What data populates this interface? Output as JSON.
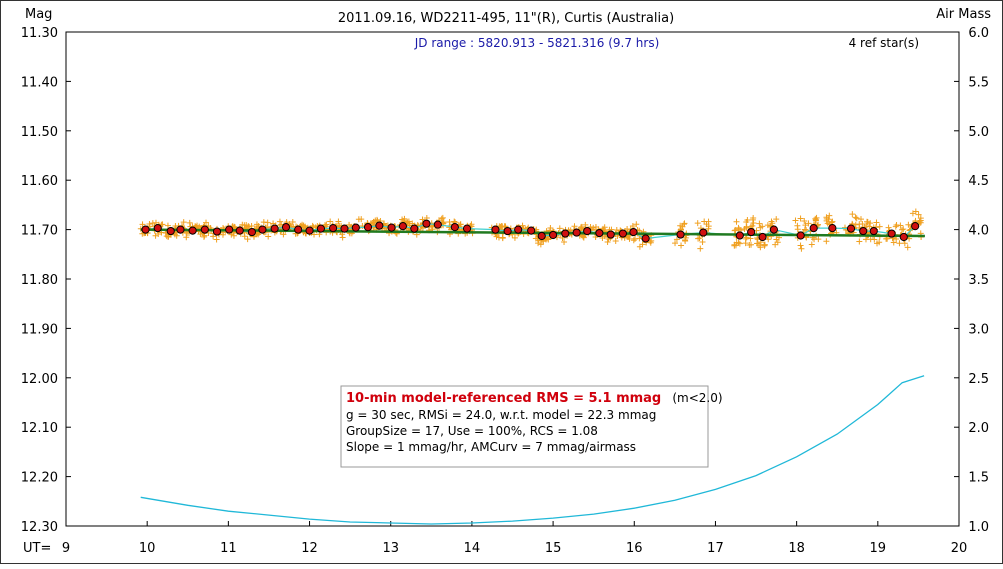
{
  "chart_data": {
    "type": "scatter",
    "title": "2011.09.16, WD2211-495, 11\"(R), Curtis (Australia)",
    "ylabel_left": "Mag",
    "ylabel_right": "Air Mass",
    "xlabel": "UT=",
    "jd_range": "JD range : 5820.913 - 5821.316 (9.7 hrs)",
    "ref_stars": "4 ref star(s)",
    "xlim": [
      9,
      20
    ],
    "ylim_mag": [
      11.3,
      12.3
    ],
    "ylim_airmass": [
      1.0,
      6.0
    ],
    "x_ticks": [
      "9",
      "10",
      "11",
      "12",
      "13",
      "14",
      "15",
      "16",
      "17",
      "18",
      "19",
      "20"
    ],
    "y_ticks_left": [
      "11.30",
      "11.40",
      "11.50",
      "11.60",
      "11.70",
      "11.80",
      "11.90",
      "12.00",
      "12.10",
      "12.20",
      "12.30"
    ],
    "y_ticks_right": [
      "6.0",
      "5.5",
      "5.0",
      "4.5",
      "4.0",
      "3.5",
      "3.0",
      "2.5",
      "2.0",
      "1.5",
      "1.0"
    ],
    "colors": {
      "raw_points": "#f0a020",
      "binned_points": "#d01010",
      "model_line": "#207a20",
      "smooth_line": "#40d0d0",
      "airmass_curve": "#20b8d8"
    },
    "series": [
      {
        "kind": "binned",
        "x": [
          9.98,
          10.13,
          10.29,
          10.41,
          10.56,
          10.71,
          10.86,
          11.01,
          11.14,
          11.29,
          11.42,
          11.57,
          11.71,
          11.86,
          12.0,
          12.14,
          12.29,
          12.43,
          12.57,
          12.72,
          12.86,
          13.01,
          13.15,
          13.29,
          13.44,
          13.58,
          13.79,
          13.94,
          14.29,
          14.44,
          14.57,
          14.73,
          14.86,
          15.0,
          15.15,
          15.29,
          15.42,
          15.57,
          15.71,
          15.86,
          15.99,
          16.14,
          16.57,
          16.85,
          17.3,
          17.44,
          17.58,
          17.72,
          18.05,
          18.21,
          18.44,
          18.67,
          18.82,
          18.95,
          19.17,
          19.32,
          19.46
        ],
        "y": [
          11.7,
          11.697,
          11.703,
          11.7,
          11.702,
          11.7,
          11.704,
          11.7,
          11.702,
          11.705,
          11.7,
          11.698,
          11.695,
          11.7,
          11.702,
          11.698,
          11.697,
          11.698,
          11.696,
          11.695,
          11.692,
          11.696,
          11.693,
          11.698,
          11.688,
          11.69,
          11.695,
          11.698,
          11.7,
          11.703,
          11.7,
          11.702,
          11.713,
          11.711,
          11.708,
          11.706,
          11.703,
          11.707,
          11.71,
          11.708,
          11.705,
          11.718,
          11.71,
          11.706,
          11.712,
          11.705,
          11.715,
          11.7,
          11.712,
          11.697,
          11.697,
          11.698,
          11.703,
          11.703,
          11.708,
          11.715,
          11.693
        ]
      },
      {
        "kind": "model",
        "x": [
          9.92,
          19.58
        ],
        "y": [
          11.7,
          11.713
        ]
      },
      {
        "kind": "airmass",
        "x": [
          9.92,
          10.5,
          11.0,
          11.5,
          12.0,
          12.5,
          13.0,
          13.5,
          14.0,
          14.5,
          15.0,
          15.5,
          16.0,
          16.5,
          17.0,
          17.5,
          18.0,
          18.5,
          19.0,
          19.3,
          19.57
        ],
        "y": [
          1.29,
          1.21,
          1.15,
          1.11,
          1.07,
          1.04,
          1.03,
          1.02,
          1.03,
          1.05,
          1.08,
          1.12,
          1.18,
          1.26,
          1.37,
          1.51,
          1.7,
          1.93,
          2.23,
          2.45,
          2.52
        ]
      }
    ],
    "info_box": {
      "rms_headline": "10-min model-referenced RMS = 5.1 mmag",
      "rms_note": "(m<2.0)",
      "line2": "g = 30 sec, RMSi = 24.0, w.r.t. model = 22.3 mmag",
      "line3": "GroupSize = 17, Use = 100%, RCS = 1.08",
      "line4": "Slope = 1 mmag/hr, AMCurv = 7 mmag/airmass"
    }
  }
}
